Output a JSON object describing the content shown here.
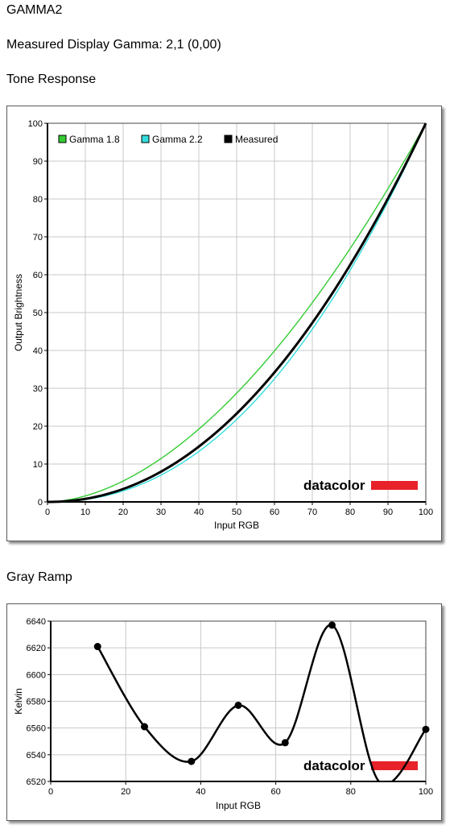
{
  "profile_name": "GAMMA2",
  "gamma_line": "Measured Display Gamma: 2,1 (0,00)",
  "tone_section_title": "Tone Response",
  "gray_section_title": "Gray Ramp",
  "logo_text": "datacolor",
  "colors": {
    "gamma18": "#33cc33",
    "gamma22": "#33dddd",
    "measured": "#000000",
    "grid": "#c8c8c8",
    "logo_bar": "#e8222a"
  },
  "chart_data": [
    {
      "type": "line",
      "xlabel": "Input RGB",
      "ylabel": "Output Brightness",
      "xlim": [
        0,
        100
      ],
      "ylim": [
        0,
        100
      ],
      "x_ticks": [
        "0",
        "10",
        "20",
        "30",
        "40",
        "50",
        "60",
        "70",
        "80",
        "90",
        "100"
      ],
      "y_ticks": [
        "0",
        "10",
        "20",
        "30",
        "40",
        "50",
        "60",
        "70",
        "80",
        "90",
        "100"
      ],
      "grid": true,
      "legend_position": "top-left",
      "series": [
        {
          "name": "Gamma 1.8",
          "color": "#33cc33",
          "gamma": 1.8
        },
        {
          "name": "Gamma 2.2",
          "color": "#33dddd",
          "gamma": 2.2
        },
        {
          "name": "Measured",
          "color": "#000000",
          "gamma": 2.1
        }
      ]
    },
    {
      "type": "line",
      "xlabel": "Input RGB",
      "ylabel": "Kelvin",
      "xlim": [
        0,
        100
      ],
      "ylim": [
        6520,
        6640
      ],
      "x_ticks": [
        "0",
        "20",
        "40",
        "60",
        "80",
        "100"
      ],
      "y_ticks": [
        "6520",
        "6540",
        "6560",
        "6580",
        "6600",
        "6620",
        "6640"
      ],
      "grid": true,
      "series": [
        {
          "x": [
            12.5,
            25,
            37.5,
            50,
            62.5,
            75,
            87.5,
            100
          ],
          "y": [
            6621,
            6561,
            6535,
            6577,
            6549,
            6637,
            6520,
            6559
          ]
        }
      ]
    }
  ]
}
